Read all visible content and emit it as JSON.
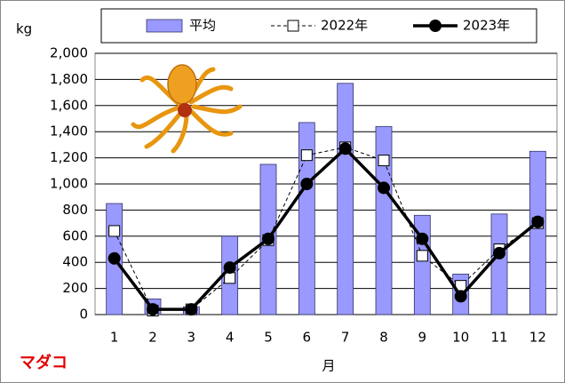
{
  "chart_data": {
    "type": "combo",
    "y_label": "kg",
    "x_label": "月",
    "annotation": "マダコ",
    "categories": [
      "1",
      "2",
      "3",
      "4",
      "5",
      "6",
      "7",
      "8",
      "9",
      "10",
      "11",
      "12"
    ],
    "ylim": [
      0,
      2000
    ],
    "yticks": [
      0,
      200,
      400,
      600,
      800,
      {
        "value": 1000,
        "label": "1,000"
      },
      {
        "value": 1200,
        "label": "1,200"
      },
      {
        "value": 1400,
        "label": "1,400"
      },
      {
        "value": 1600,
        "label": "1,600"
      },
      {
        "value": 1800,
        "label": "1,800"
      },
      {
        "value": 2000,
        "label": "2,000"
      }
    ],
    "grid": true,
    "series": [
      {
        "name": "平均",
        "type": "bar",
        "color": "#9999ff",
        "values": [
          850,
          120,
          60,
          600,
          1150,
          1470,
          1770,
          1440,
          760,
          310,
          770,
          1250
        ]
      },
      {
        "name": "2022年",
        "type": "line",
        "marker": "square",
        "dash": true,
        "color": "#000000",
        "values": [
          640,
          30,
          40,
          280,
          570,
          1220,
          1280,
          1180,
          450,
          220,
          500,
          700
        ]
      },
      {
        "name": "2023年",
        "type": "line",
        "marker": "circle",
        "dash": false,
        "color": "#000000",
        "values": [
          430,
          40,
          40,
          360,
          580,
          1000,
          1270,
          970,
          580,
          140,
          470,
          710
        ]
      }
    ]
  }
}
